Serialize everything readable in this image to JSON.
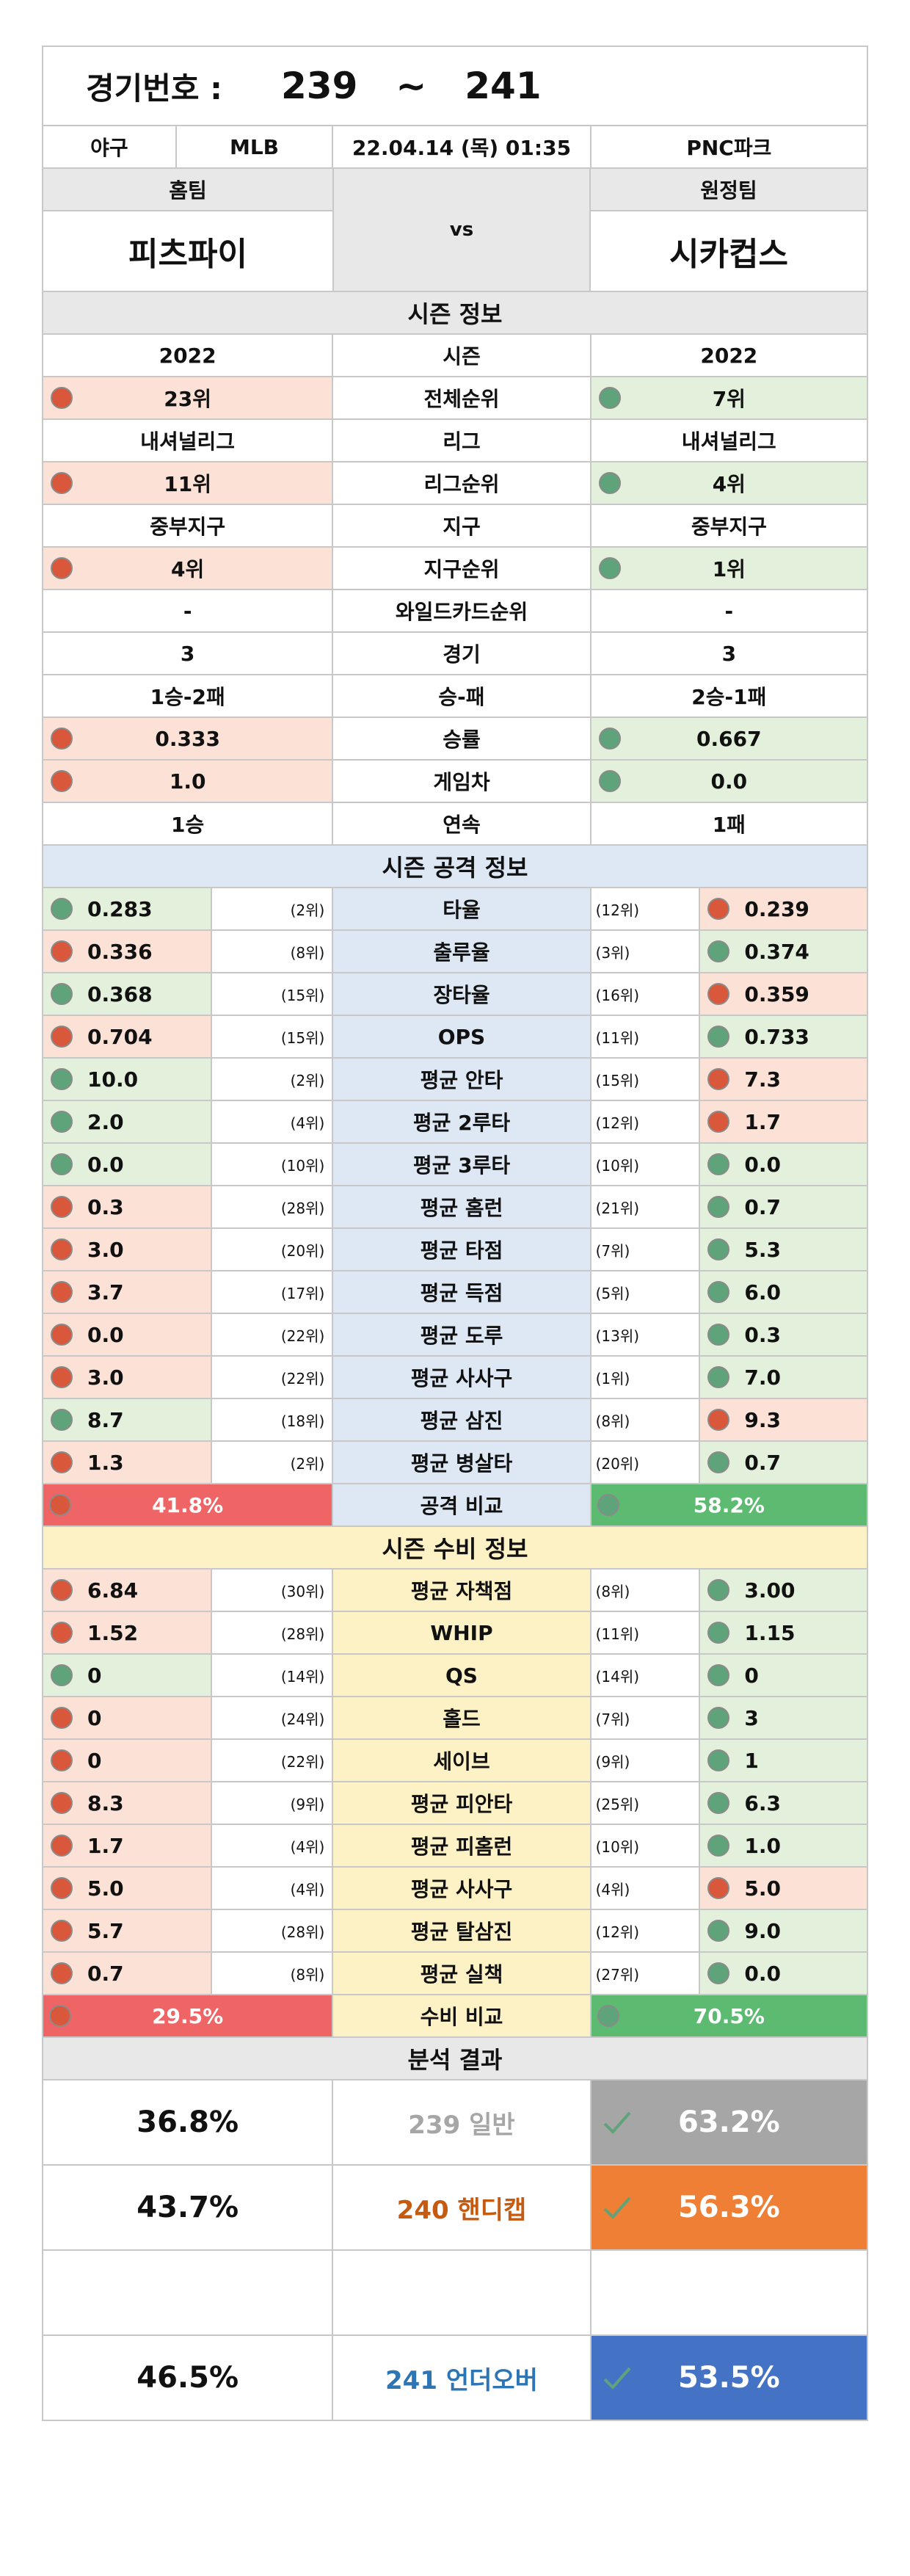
{
  "header": {
    "label": "경기번호 :",
    "from": "239",
    "tilde": "~",
    "to": "241"
  },
  "info": {
    "sport": "야구",
    "league": "MLB",
    "datetime": "22.04.14 (목) 01:35",
    "venue": "PNC파크"
  },
  "teams": {
    "home_label": "홈팀",
    "away_label": "원정팀",
    "home": "피츠파이",
    "away": "시카컵스",
    "vs": "vs"
  },
  "colors": {
    "bad": "#d9573b",
    "good": "#5fa37b",
    "bar_home": "#ef6464",
    "bar_away": "#5cbb71",
    "result_gray": "#a6a6a6",
    "result_orange": "#ee7f34",
    "result_blue": "#4472c4",
    "text_orange": "#c55a11",
    "text_blue": "#2e75b6"
  },
  "season": {
    "title": "시즌 정보",
    "rows": [
      {
        "label": "시즌",
        "home": "2022",
        "away": "2022",
        "hs": "",
        "as": ""
      },
      {
        "label": "전체순위",
        "home": "23위",
        "away": "7위",
        "hs": "bad",
        "as": "good"
      },
      {
        "label": "리그",
        "home": "내셔널리그",
        "away": "내셔널리그",
        "hs": "",
        "as": ""
      },
      {
        "label": "리그순위",
        "home": "11위",
        "away": "4위",
        "hs": "bad",
        "as": "good"
      },
      {
        "label": "지구",
        "home": "중부지구",
        "away": "중부지구",
        "hs": "",
        "as": ""
      },
      {
        "label": "지구순위",
        "home": "4위",
        "away": "1위",
        "hs": "bad",
        "as": "good"
      },
      {
        "label": "와일드카드순위",
        "home": "-",
        "away": "-",
        "hs": "",
        "as": ""
      },
      {
        "label": "경기",
        "home": "3",
        "away": "3",
        "hs": "",
        "as": ""
      },
      {
        "label": "승-패",
        "home": "1승-2패",
        "away": "2승-1패",
        "hs": "",
        "as": ""
      },
      {
        "label": "승률",
        "home": "0.333",
        "away": "0.667",
        "hs": "bad",
        "as": "good"
      },
      {
        "label": "게임차",
        "home": "1.0",
        "away": "0.0",
        "hs": "bad",
        "as": "good"
      },
      {
        "label": "연속",
        "home": "1승",
        "away": "1패",
        "hs": "",
        "as": ""
      }
    ]
  },
  "attack": {
    "title": "시즌 공격 정보",
    "rows": [
      {
        "label": "타율",
        "home": "0.283",
        "hr": "(2위)",
        "away": "0.239",
        "ar": "(12위)",
        "hs": "good",
        "as": "bad"
      },
      {
        "label": "출루율",
        "home": "0.336",
        "hr": "(8위)",
        "away": "0.374",
        "ar": "(3위)",
        "hs": "bad",
        "as": "good"
      },
      {
        "label": "장타율",
        "home": "0.368",
        "hr": "(15위)",
        "away": "0.359",
        "ar": "(16위)",
        "hs": "good",
        "as": "bad"
      },
      {
        "label": "OPS",
        "home": "0.704",
        "hr": "(15위)",
        "away": "0.733",
        "ar": "(11위)",
        "hs": "bad",
        "as": "good"
      },
      {
        "label": "평균 안타",
        "home": "10.0",
        "hr": "(2위)",
        "away": "7.3",
        "ar": "(15위)",
        "hs": "good",
        "as": "bad"
      },
      {
        "label": "평균 2루타",
        "home": "2.0",
        "hr": "(4위)",
        "away": "1.7",
        "ar": "(12위)",
        "hs": "good",
        "as": "bad"
      },
      {
        "label": "평균 3루타",
        "home": "0.0",
        "hr": "(10위)",
        "away": "0.0",
        "ar": "(10위)",
        "hs": "good",
        "as": "good"
      },
      {
        "label": "평균 홈런",
        "home": "0.3",
        "hr": "(28위)",
        "away": "0.7",
        "ar": "(21위)",
        "hs": "bad",
        "as": "good"
      },
      {
        "label": "평균 타점",
        "home": "3.0",
        "hr": "(20위)",
        "away": "5.3",
        "ar": "(7위)",
        "hs": "bad",
        "as": "good"
      },
      {
        "label": "평균 득점",
        "home": "3.7",
        "hr": "(17위)",
        "away": "6.0",
        "ar": "(5위)",
        "hs": "bad",
        "as": "good"
      },
      {
        "label": "평균 도루",
        "home": "0.0",
        "hr": "(22위)",
        "away": "0.3",
        "ar": "(13위)",
        "hs": "bad",
        "as": "good"
      },
      {
        "label": "평균 사사구",
        "home": "3.0",
        "hr": "(22위)",
        "away": "7.0",
        "ar": "(1위)",
        "hs": "bad",
        "as": "good"
      },
      {
        "label": "평균 삼진",
        "home": "8.7",
        "hr": "(18위)",
        "away": "9.3",
        "ar": "(8위)",
        "hs": "good",
        "as": "bad"
      },
      {
        "label": "평균 병살타",
        "home": "1.3",
        "hr": "(2위)",
        "away": "0.7",
        "ar": "(20위)",
        "hs": "bad",
        "as": "good"
      }
    ],
    "compare": {
      "label": "공격 비교",
      "home": "41.8%",
      "away": "58.2%",
      "home_frac": 0.418
    }
  },
  "defense": {
    "title": "시즌 수비 정보",
    "rows": [
      {
        "label": "평균 자책점",
        "home": "6.84",
        "hr": "(30위)",
        "away": "3.00",
        "ar": "(8위)",
        "hs": "bad",
        "as": "good"
      },
      {
        "label": "WHIP",
        "home": "1.52",
        "hr": "(28위)",
        "away": "1.15",
        "ar": "(11위)",
        "hs": "bad",
        "as": "good"
      },
      {
        "label": "QS",
        "home": "0",
        "hr": "(14위)",
        "away": "0",
        "ar": "(14위)",
        "hs": "good",
        "as": "good"
      },
      {
        "label": "홀드",
        "home": "0",
        "hr": "(24위)",
        "away": "3",
        "ar": "(7위)",
        "hs": "bad",
        "as": "good"
      },
      {
        "label": "세이브",
        "home": "0",
        "hr": "(22위)",
        "away": "1",
        "ar": "(9위)",
        "hs": "bad",
        "as": "good"
      },
      {
        "label": "평균 피안타",
        "home": "8.3",
        "hr": "(9위)",
        "away": "6.3",
        "ar": "(25위)",
        "hs": "bad",
        "as": "good"
      },
      {
        "label": "평균 피홈런",
        "home": "1.7",
        "hr": "(4위)",
        "away": "1.0",
        "ar": "(10위)",
        "hs": "bad",
        "as": "good"
      },
      {
        "label": "평균 사사구",
        "home": "5.0",
        "hr": "(4위)",
        "away": "5.0",
        "ar": "(4위)",
        "hs": "bad",
        "as": "bad"
      },
      {
        "label": "평균 탈삼진",
        "home": "5.7",
        "hr": "(28위)",
        "away": "9.0",
        "ar": "(12위)",
        "hs": "bad",
        "as": "good"
      },
      {
        "label": "평균 실책",
        "home": "0.7",
        "hr": "(8위)",
        "away": "0.0",
        "ar": "(27위)",
        "hs": "bad",
        "as": "good"
      }
    ],
    "compare": {
      "label": "수비 비교",
      "home": "29.5%",
      "away": "70.5%",
      "home_frac": 0.295
    }
  },
  "analysis": {
    "title": "분석 결과",
    "rows": [
      {
        "home": "36.8%",
        "label": "239 일반",
        "away": "63.2%",
        "color": "gray"
      },
      {
        "home": "43.7%",
        "label": "240 핸디캡",
        "away": "56.3%",
        "color": "orange"
      },
      {
        "home": "",
        "label": "",
        "away": "",
        "color": "none"
      },
      {
        "home": "46.5%",
        "label": "241 언더오버",
        "away": "53.5%",
        "color": "blue"
      }
    ]
  }
}
